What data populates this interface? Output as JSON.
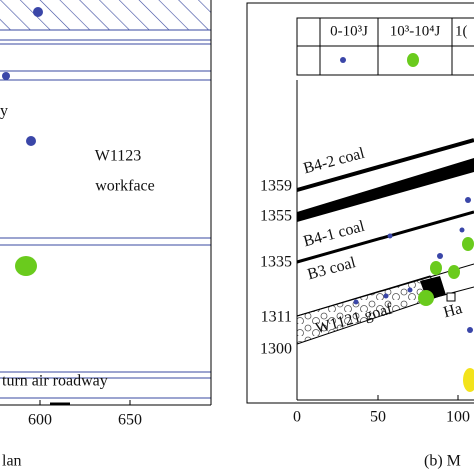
{
  "left_panel": {
    "labels": [
      "y",
      "W1123",
      "workface",
      "turn air roadway"
    ],
    "x_ticks": [
      600,
      650
    ],
    "caption": "lan"
  },
  "right_panel": {
    "legend": [
      "0-10³J",
      "10³-10⁴J",
      "1("
    ],
    "elevations": [
      1359,
      1355,
      1335,
      1311,
      1300
    ],
    "layers": [
      "B4-2 coal",
      "B4-1 coal",
      "B3 coal",
      "W1121 goaf",
      "Ha"
    ],
    "x_ticks": [
      0,
      50,
      100
    ],
    "caption": "(b) M"
  }
}
